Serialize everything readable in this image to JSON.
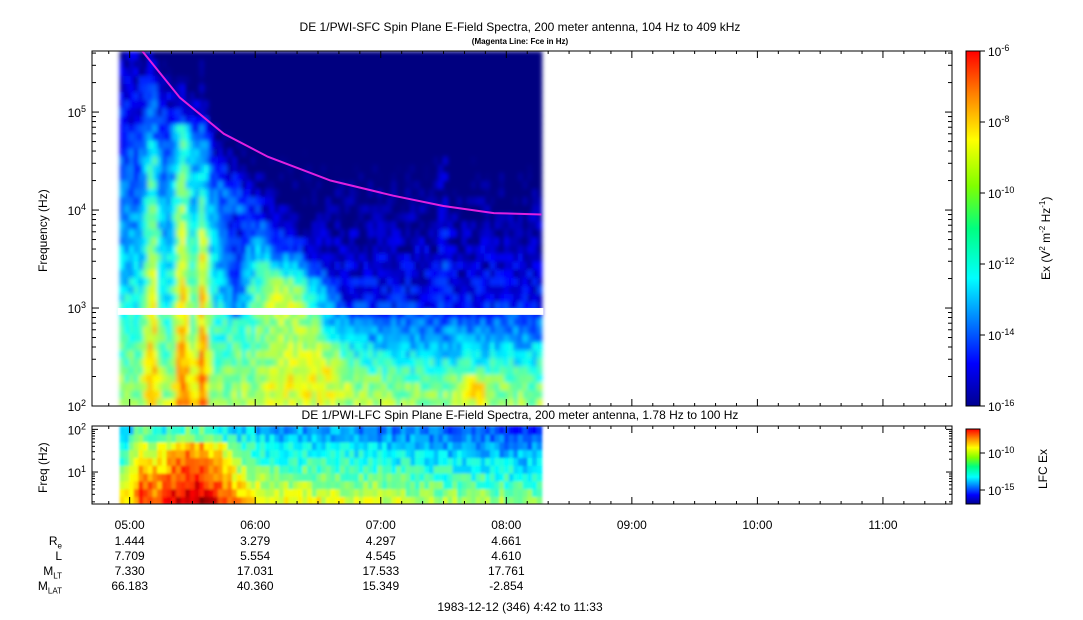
{
  "chart_data": [
    {
      "type": "heatmap",
      "title": "DE 1/PWI-SFC  Spin Plane E-Field Spectra, 200 meter antenna, 104 Hz to 409 kHz",
      "subtitle": "(Magenta Line: Fce in Hz)",
      "ylabel": "Frequency (Hz)",
      "yscale": "log",
      "ylim": [
        100,
        420000
      ],
      "yticks": [
        {
          "value": 100,
          "base": "10",
          "exp": "2"
        },
        {
          "value": 1000,
          "base": "10",
          "exp": "3"
        },
        {
          "value": 10000,
          "base": "10",
          "exp": "4"
        },
        {
          "value": 100000,
          "base": "10",
          "exp": "5"
        }
      ],
      "data_coverage_hours": [
        4.92,
        8.28
      ],
      "gap_frequency_hz": [
        850,
        1000
      ],
      "colorbar": {
        "label": "Ex (V",
        "label_parts": [
          "Ex (V",
          "2",
          " m",
          "-2",
          " Hz",
          "-1",
          ")"
        ],
        "range": [
          1e-16,
          1e-06
        ],
        "scale": "log",
        "ticks": [
          {
            "value": 1e-06,
            "base": "10",
            "exp": "-6"
          },
          {
            "value": 1e-08,
            "base": "10",
            "exp": "-8"
          },
          {
            "value": 1e-10,
            "base": "10",
            "exp": "-10"
          },
          {
            "value": 1e-12,
            "base": "10",
            "exp": "-12"
          },
          {
            "value": 1e-14,
            "base": "10",
            "exp": "-14"
          },
          {
            "value": 1e-16,
            "base": "10",
            "exp": "-16"
          }
        ]
      },
      "fce_line": {
        "color": "#e020e0",
        "points": [
          [
            5.1,
            420000
          ],
          [
            5.4,
            140000
          ],
          [
            5.75,
            60000
          ],
          [
            6.1,
            35000
          ],
          [
            6.6,
            20000
          ],
          [
            7.1,
            14000
          ],
          [
            7.5,
            11000
          ],
          [
            7.9,
            9300
          ],
          [
            8.28,
            9000
          ]
        ]
      }
    },
    {
      "type": "heatmap",
      "title": "DE 1/PWI-LFC  Spin Plane E-Field Spectra, 200 meter antenna, 1.78 Hz to 100 Hz",
      "ylabel": "Freq (Hz)",
      "yscale": "log",
      "ylim": [
        1.78,
        120
      ],
      "yticks": [
        {
          "value": 10,
          "base": "10",
          "exp": "1"
        },
        {
          "value": 100,
          "base": "10",
          "exp": "2"
        }
      ],
      "data_coverage_hours": [
        4.92,
        8.28
      ],
      "colorbar": {
        "label": "LFC Ex",
        "ticks": [
          "10-10",
          "10-15"
        ],
        "tick_parts": [
          {
            "base": "10",
            "exp": "-10"
          },
          {
            "base": "10",
            "exp": "-15"
          }
        ]
      }
    }
  ],
  "time_axis": {
    "range_hours": [
      4.7,
      11.55
    ],
    "ticks": [
      {
        "hour": 5,
        "label": "05:00"
      },
      {
        "hour": 6,
        "label": "06:00"
      },
      {
        "hour": 7,
        "label": "07:00"
      },
      {
        "hour": 8,
        "label": "08:00"
      },
      {
        "hour": 9,
        "label": "09:00"
      },
      {
        "hour": 10,
        "label": "10:00"
      },
      {
        "hour": 11,
        "label": "11:00"
      }
    ]
  },
  "ephemeris": {
    "rows": [
      {
        "name": "R",
        "sub": "e",
        "values": [
          "1.444",
          "3.279",
          "4.297",
          "4.661"
        ]
      },
      {
        "name": "L",
        "sub": "",
        "values": [
          "7.709",
          "5.554",
          "4.545",
          "4.610"
        ]
      },
      {
        "name": "M",
        "sub": "LT",
        "values": [
          "7.330",
          "17.031",
          "17.533",
          "17.761"
        ]
      },
      {
        "name": "M",
        "sub": "LAT",
        "values": [
          "66.183",
          "40.360",
          "15.349",
          "-2.854"
        ]
      }
    ]
  },
  "footer": "1983-12-12 (346) 4:42 to 11:33"
}
